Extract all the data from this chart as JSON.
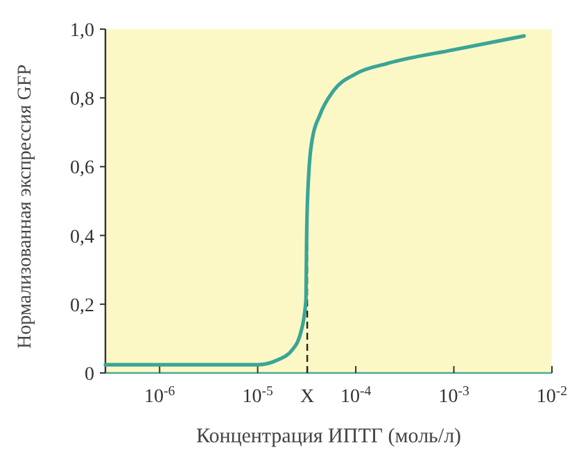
{
  "chart_data": {
    "type": "line",
    "xlabel": "Концентрация ИПТГ (моль/л)",
    "ylabel": "Нормализованная экспрессия GFP",
    "log": "x",
    "xlim": [
      2.8e-07,
      0.01
    ],
    "ylim": [
      0,
      1
    ],
    "xticks": [
      {
        "value": 1e-06,
        "label": "10$^{-6}$"
      },
      {
        "value": 1e-05,
        "label": "10$^{-5}$"
      },
      {
        "value": 3.2e-05,
        "label": "X"
      },
      {
        "value": 0.0001,
        "label": "10$^{-4}$"
      },
      {
        "value": 0.001,
        "label": "10$^{-3}$"
      },
      {
        "value": 0.01,
        "label": "10$^{-2}$"
      }
    ],
    "yticks": [
      {
        "value": 0,
        "label": "0"
      },
      {
        "value": 0.2,
        "label": "0,2"
      },
      {
        "value": 0.4,
        "label": "0,4"
      },
      {
        "value": 0.6,
        "label": "0,6"
      },
      {
        "value": 0.8,
        "label": "0,8"
      },
      {
        "value": 1,
        "label": "1,0"
      }
    ],
    "grid": false,
    "marker": "none",
    "line_style": "solid",
    "ref_lines": [
      {
        "axis": "x",
        "value": 3.2e-05,
        "line_style": "dashed",
        "color": "#222222"
      }
    ],
    "series": [
      {
        "color": "#3aa597",
        "x": [
          2.8e-07,
          1e-05,
          1.6e-05,
          2.2e-05,
          2.75e-05,
          3.1e-05,
          3.16e-05,
          3.3e-05,
          3.6e-05,
          4.3e-05,
          5.9e-05,
          0.0001,
          0.00021,
          0.001,
          0.0052
        ],
        "values": [
          0.024,
          0.024,
          0.038,
          0.064,
          0.118,
          0.21,
          0.41,
          0.57,
          0.68,
          0.75,
          0.82,
          0.87,
          0.9,
          0.94,
          0.98
        ]
      }
    ]
  }
}
